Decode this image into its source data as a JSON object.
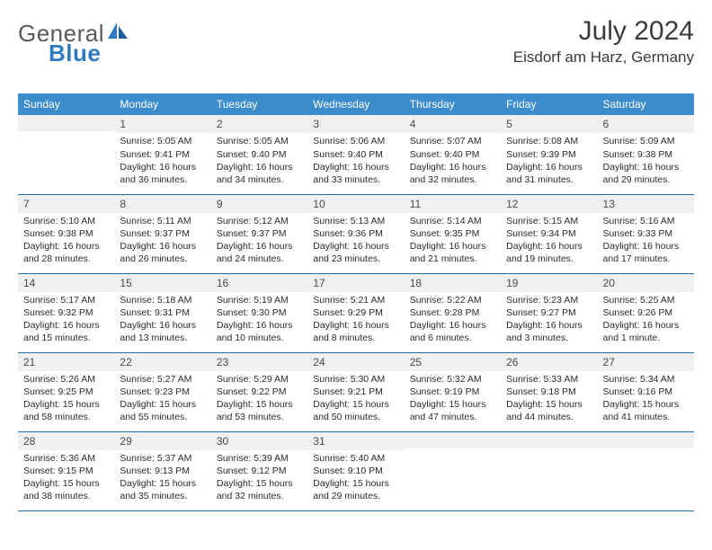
{
  "brand": {
    "part1": "General",
    "part2": "Blue"
  },
  "title": "July 2024",
  "location": "Eisdorf am Harz, Germany",
  "colors": {
    "header_row_bg": "#3d8ccc",
    "header_row_text": "#ffffff",
    "daynum_bg": "#eef0f1",
    "row_border": "#2b6aa3",
    "logo_gray": "#5a5a5a",
    "logo_blue": "#2f7ac0"
  },
  "weekdays": [
    "Sunday",
    "Monday",
    "Tuesday",
    "Wednesday",
    "Thursday",
    "Friday",
    "Saturday"
  ],
  "weeks": [
    [
      {
        "day": "",
        "sunrise": "",
        "sunset": "",
        "daylight": ""
      },
      {
        "day": "1",
        "sunrise": "Sunrise: 5:05 AM",
        "sunset": "Sunset: 9:41 PM",
        "daylight": "Daylight: 16 hours and 36 minutes."
      },
      {
        "day": "2",
        "sunrise": "Sunrise: 5:05 AM",
        "sunset": "Sunset: 9:40 PM",
        "daylight": "Daylight: 16 hours and 34 minutes."
      },
      {
        "day": "3",
        "sunrise": "Sunrise: 5:06 AM",
        "sunset": "Sunset: 9:40 PM",
        "daylight": "Daylight: 16 hours and 33 minutes."
      },
      {
        "day": "4",
        "sunrise": "Sunrise: 5:07 AM",
        "sunset": "Sunset: 9:40 PM",
        "daylight": "Daylight: 16 hours and 32 minutes."
      },
      {
        "day": "5",
        "sunrise": "Sunrise: 5:08 AM",
        "sunset": "Sunset: 9:39 PM",
        "daylight": "Daylight: 16 hours and 31 minutes."
      },
      {
        "day": "6",
        "sunrise": "Sunrise: 5:09 AM",
        "sunset": "Sunset: 9:38 PM",
        "daylight": "Daylight: 16 hours and 29 minutes."
      }
    ],
    [
      {
        "day": "7",
        "sunrise": "Sunrise: 5:10 AM",
        "sunset": "Sunset: 9:38 PM",
        "daylight": "Daylight: 16 hours and 28 minutes."
      },
      {
        "day": "8",
        "sunrise": "Sunrise: 5:11 AM",
        "sunset": "Sunset: 9:37 PM",
        "daylight": "Daylight: 16 hours and 26 minutes."
      },
      {
        "day": "9",
        "sunrise": "Sunrise: 5:12 AM",
        "sunset": "Sunset: 9:37 PM",
        "daylight": "Daylight: 16 hours and 24 minutes."
      },
      {
        "day": "10",
        "sunrise": "Sunrise: 5:13 AM",
        "sunset": "Sunset: 9:36 PM",
        "daylight": "Daylight: 16 hours and 23 minutes."
      },
      {
        "day": "11",
        "sunrise": "Sunrise: 5:14 AM",
        "sunset": "Sunset: 9:35 PM",
        "daylight": "Daylight: 16 hours and 21 minutes."
      },
      {
        "day": "12",
        "sunrise": "Sunrise: 5:15 AM",
        "sunset": "Sunset: 9:34 PM",
        "daylight": "Daylight: 16 hours and 19 minutes."
      },
      {
        "day": "13",
        "sunrise": "Sunrise: 5:16 AM",
        "sunset": "Sunset: 9:33 PM",
        "daylight": "Daylight: 16 hours and 17 minutes."
      }
    ],
    [
      {
        "day": "14",
        "sunrise": "Sunrise: 5:17 AM",
        "sunset": "Sunset: 9:32 PM",
        "daylight": "Daylight: 16 hours and 15 minutes."
      },
      {
        "day": "15",
        "sunrise": "Sunrise: 5:18 AM",
        "sunset": "Sunset: 9:31 PM",
        "daylight": "Daylight: 16 hours and 13 minutes."
      },
      {
        "day": "16",
        "sunrise": "Sunrise: 5:19 AM",
        "sunset": "Sunset: 9:30 PM",
        "daylight": "Daylight: 16 hours and 10 minutes."
      },
      {
        "day": "17",
        "sunrise": "Sunrise: 5:21 AM",
        "sunset": "Sunset: 9:29 PM",
        "daylight": "Daylight: 16 hours and 8 minutes."
      },
      {
        "day": "18",
        "sunrise": "Sunrise: 5:22 AM",
        "sunset": "Sunset: 9:28 PM",
        "daylight": "Daylight: 16 hours and 6 minutes."
      },
      {
        "day": "19",
        "sunrise": "Sunrise: 5:23 AM",
        "sunset": "Sunset: 9:27 PM",
        "daylight": "Daylight: 16 hours and 3 minutes."
      },
      {
        "day": "20",
        "sunrise": "Sunrise: 5:25 AM",
        "sunset": "Sunset: 9:26 PM",
        "daylight": "Daylight: 16 hours and 1 minute."
      }
    ],
    [
      {
        "day": "21",
        "sunrise": "Sunrise: 5:26 AM",
        "sunset": "Sunset: 9:25 PM",
        "daylight": "Daylight: 15 hours and 58 minutes."
      },
      {
        "day": "22",
        "sunrise": "Sunrise: 5:27 AM",
        "sunset": "Sunset: 9:23 PM",
        "daylight": "Daylight: 15 hours and 55 minutes."
      },
      {
        "day": "23",
        "sunrise": "Sunrise: 5:29 AM",
        "sunset": "Sunset: 9:22 PM",
        "daylight": "Daylight: 15 hours and 53 minutes."
      },
      {
        "day": "24",
        "sunrise": "Sunrise: 5:30 AM",
        "sunset": "Sunset: 9:21 PM",
        "daylight": "Daylight: 15 hours and 50 minutes."
      },
      {
        "day": "25",
        "sunrise": "Sunrise: 5:32 AM",
        "sunset": "Sunset: 9:19 PM",
        "daylight": "Daylight: 15 hours and 47 minutes."
      },
      {
        "day": "26",
        "sunrise": "Sunrise: 5:33 AM",
        "sunset": "Sunset: 9:18 PM",
        "daylight": "Daylight: 15 hours and 44 minutes."
      },
      {
        "day": "27",
        "sunrise": "Sunrise: 5:34 AM",
        "sunset": "Sunset: 9:16 PM",
        "daylight": "Daylight: 15 hours and 41 minutes."
      }
    ],
    [
      {
        "day": "28",
        "sunrise": "Sunrise: 5:36 AM",
        "sunset": "Sunset: 9:15 PM",
        "daylight": "Daylight: 15 hours and 38 minutes."
      },
      {
        "day": "29",
        "sunrise": "Sunrise: 5:37 AM",
        "sunset": "Sunset: 9:13 PM",
        "daylight": "Daylight: 15 hours and 35 minutes."
      },
      {
        "day": "30",
        "sunrise": "Sunrise: 5:39 AM",
        "sunset": "Sunset: 9:12 PM",
        "daylight": "Daylight: 15 hours and 32 minutes."
      },
      {
        "day": "31",
        "sunrise": "Sunrise: 5:40 AM",
        "sunset": "Sunset: 9:10 PM",
        "daylight": "Daylight: 15 hours and 29 minutes."
      },
      {
        "day": "",
        "sunrise": "",
        "sunset": "",
        "daylight": ""
      },
      {
        "day": "",
        "sunrise": "",
        "sunset": "",
        "daylight": ""
      },
      {
        "day": "",
        "sunrise": "",
        "sunset": "",
        "daylight": ""
      }
    ]
  ]
}
